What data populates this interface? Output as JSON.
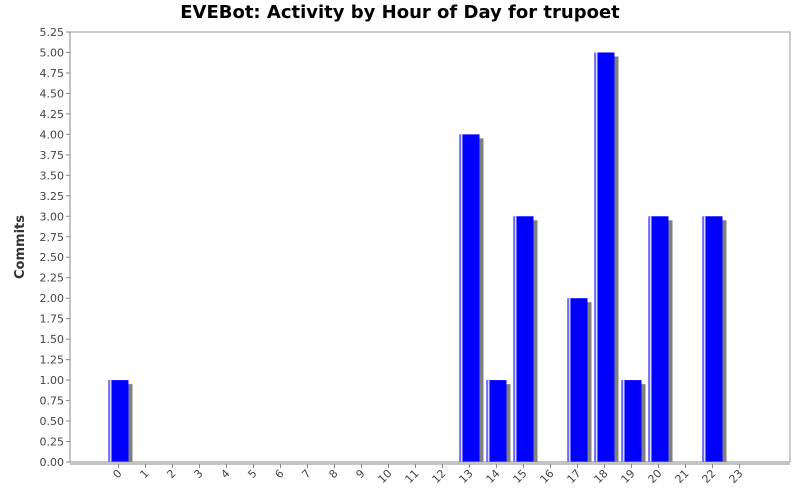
{
  "chart_data": {
    "type": "bar",
    "title": "EVEBot: Activity by Hour of Day for trupoet",
    "xlabel": "",
    "ylabel": "Commits",
    "categories": [
      "0",
      "1",
      "2",
      "3",
      "4",
      "5",
      "6",
      "7",
      "8",
      "9",
      "10",
      "11",
      "12",
      "13",
      "14",
      "15",
      "16",
      "17",
      "18",
      "19",
      "20",
      "21",
      "22",
      "23"
    ],
    "values": [
      1,
      0,
      0,
      0,
      0,
      0,
      0,
      0,
      0,
      0,
      0,
      0,
      0,
      4,
      1,
      3,
      0,
      2,
      5,
      1,
      3,
      0,
      3,
      0
    ],
    "ylim": [
      0,
      5.25
    ],
    "y_ticks": [
      "0.00",
      "0.25",
      "0.50",
      "0.75",
      "1.00",
      "1.25",
      "1.50",
      "1.75",
      "2.00",
      "2.25",
      "2.50",
      "2.75",
      "3.00",
      "3.25",
      "3.50",
      "3.75",
      "4.00",
      "4.25",
      "4.50",
      "4.75",
      "5.00",
      "5.25"
    ],
    "grid": false,
    "legend": "none",
    "colors": {
      "bar": "#0000ff",
      "bar_highlight": "#6666ff",
      "shadow": "#808080",
      "axis": "#888888"
    }
  }
}
